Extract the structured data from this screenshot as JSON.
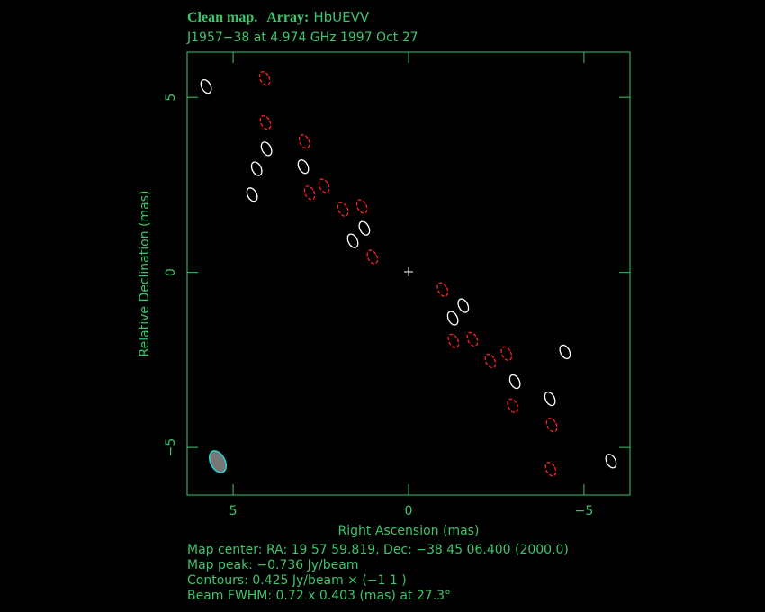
{
  "chart_data": {
    "type": "contour",
    "title_parts": [
      "Clean map.",
      "Array:",
      "HbUEVV"
    ],
    "subtitle": "J1957−38 at 4.974 GHz 1997 Oct 27",
    "x_label": "Right Ascension  (mas)",
    "y_label": "Relative Declination  (mas)",
    "xlim": [
      6.31,
      -6.31
    ],
    "ylim": [
      -6.36,
      6.29
    ],
    "xticks": [
      5,
      0,
      {
        "value": -5,
        "label": "−5"
      }
    ],
    "yticks": [
      {
        "value": -5,
        "label": "−5"
      },
      0,
      5
    ],
    "series": [
      {
        "color": "#ffffff",
        "dashed": false,
        "x": [
          5.77,
          4.05,
          4.33,
          4.46,
          3.0,
          1.26,
          1.59,
          -1.56,
          -1.26,
          -4.46,
          -3.03,
          -4.03,
          -5.77
        ],
        "y": [
          5.31,
          3.53,
          2.96,
          2.22,
          3.02,
          1.26,
          0.9,
          -0.95,
          -1.31,
          -2.27,
          -3.12,
          -3.61,
          -5.39
        ]
      },
      {
        "color": "#ff2020",
        "dashed": true,
        "x": [
          4.1,
          4.08,
          2.97,
          2.82,
          2.41,
          1.87,
          1.33,
          1.03,
          -0.97,
          -1.28,
          -1.82,
          -2.33,
          -2.79,
          -2.97,
          -4.08,
          -4.05
        ],
        "y": [
          5.54,
          4.28,
          3.74,
          2.27,
          2.47,
          1.8,
          1.88,
          0.44,
          -0.49,
          -1.96,
          -1.91,
          -2.53,
          -2.32,
          -3.81,
          -4.36,
          -5.62
        ]
      }
    ],
    "notes": [
      "Map center:  RA: 19 57 59.819,  Dec: −38 45 06.400 (2000.0)",
      "Map peak: −0.736 Jy/beam",
      "Contours: 0.425 Jy/beam × (−1 1 )",
      "Beam FWHM: 0.72 x 0.403 (mas) at 27.3°"
    ]
  }
}
